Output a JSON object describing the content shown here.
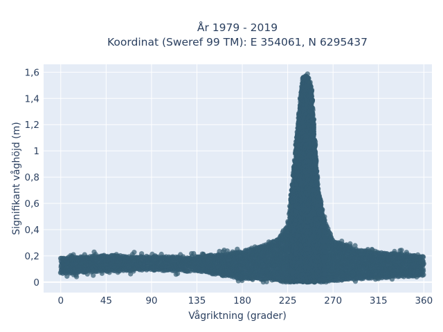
{
  "chart_data": {
    "type": "scatter",
    "title_line1": "År 1979 - 2019",
    "title_line2": "Koordinat (Sweref 99 TM): E 354061, N 6295437",
    "xlabel": "Vågriktning (grader)",
    "ylabel": "Signifikant våghöjd (m)",
    "xlim": [
      -17,
      368
    ],
    "ylim": [
      -0.08,
      1.66
    ],
    "x_ticks": [
      0,
      45,
      90,
      135,
      180,
      225,
      270,
      315,
      360
    ],
    "x_tick_labels": [
      "0",
      "45",
      "90",
      "135",
      "180",
      "225",
      "270",
      "315",
      "360"
    ],
    "y_ticks": [
      0,
      0.2,
      0.4,
      0.6,
      0.8,
      1,
      1.2,
      1.4,
      1.6
    ],
    "y_tick_labels": [
      "0",
      "0,2",
      "0,4",
      "0,6",
      "0,8",
      "1",
      "1,2",
      "1,4",
      "1,6"
    ],
    "grid": true,
    "marker_color": "#335b71",
    "plot_bg": "#e5ecf6",
    "envelope": {
      "direction": [
        0,
        20,
        45,
        90,
        135,
        160,
        180,
        200,
        215,
        225,
        230,
        235,
        240,
        243,
        245,
        248,
        250,
        253,
        255,
        260,
        270,
        290,
        315,
        340,
        360
      ],
      "hs_min": [
        0.06,
        0.07,
        0.08,
        0.09,
        0.08,
        0.05,
        0.02,
        0.02,
        0.01,
        0.0,
        0.0,
        0.0,
        0.0,
        0.0,
        0.0,
        0.0,
        0.0,
        0.0,
        0.0,
        0.0,
        0.01,
        0.02,
        0.03,
        0.04,
        0.05
      ],
      "hs_max": [
        0.19,
        0.2,
        0.21,
        0.2,
        0.2,
        0.22,
        0.24,
        0.28,
        0.33,
        0.45,
        0.75,
        1.2,
        1.56,
        1.58,
        1.57,
        1.5,
        1.3,
        0.95,
        0.72,
        0.5,
        0.33,
        0.26,
        0.23,
        0.22,
        0.2
      ]
    }
  }
}
